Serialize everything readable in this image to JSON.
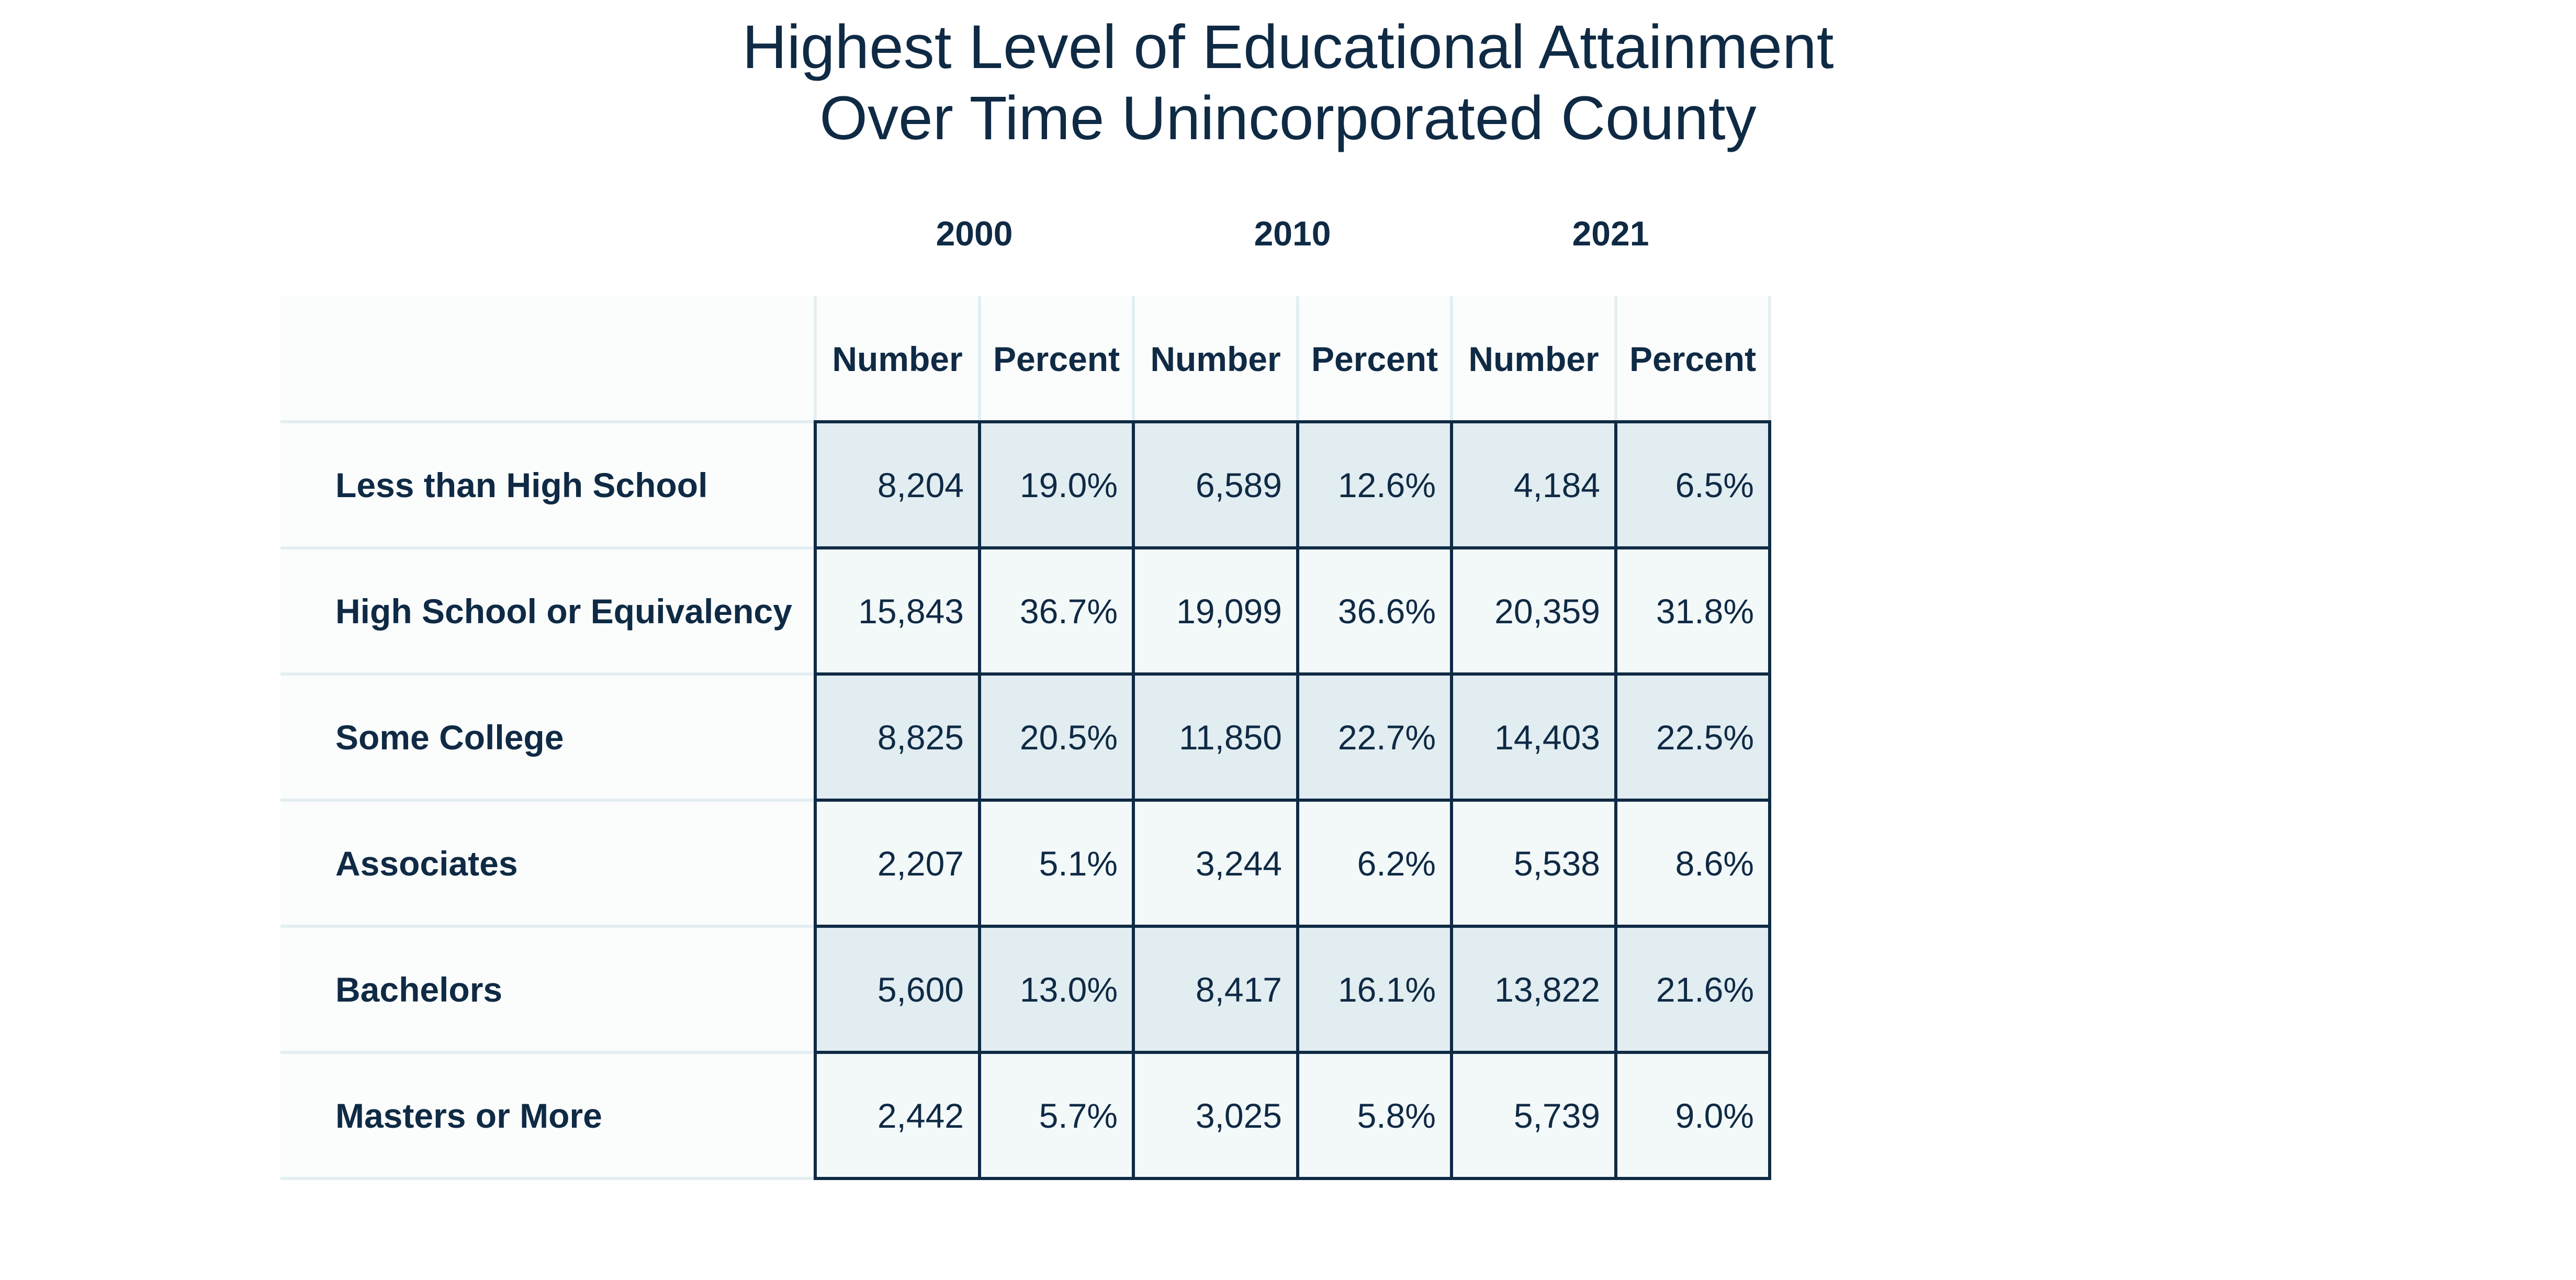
{
  "chart_data": {
    "type": "table",
    "title_lines": [
      "Highest Level of Educational Attainment",
      "Over Time Unincorporated County"
    ],
    "years": [
      "2000",
      "2010",
      "2021"
    ],
    "subheaders": [
      "Number",
      "Percent",
      "Number",
      "Percent",
      "Number",
      "Percent"
    ],
    "rows": [
      {
        "label": "Less than High School",
        "values": [
          "8,204",
          "19.0%",
          "6,589",
          "12.6%",
          "4,184",
          "6.5%"
        ]
      },
      {
        "label": "High School or Equivalency",
        "values": [
          "15,843",
          "36.7%",
          "19,099",
          "36.6%",
          "20,359",
          "31.8%"
        ]
      },
      {
        "label": "Some College",
        "values": [
          "8,825",
          "20.5%",
          "11,850",
          "22.7%",
          "14,403",
          "22.5%"
        ]
      },
      {
        "label": "Associates",
        "values": [
          "2,207",
          "5.1%",
          "3,244",
          "6.2%",
          "5,538",
          "8.6%"
        ]
      },
      {
        "label": "Bachelors",
        "values": [
          "5,600",
          "13.0%",
          "8,417",
          "16.1%",
          "13,822",
          "21.6%"
        ]
      },
      {
        "label": "Masters or More",
        "values": [
          "2,442",
          "5.7%",
          "3,025",
          "5.8%",
          "5,739",
          "9.0%"
        ]
      }
    ]
  },
  "colors": {
    "text": "#0f2a44",
    "shaded_row": "#e1edf1",
    "light_row": "#f3f8f9",
    "label_row": "#fbfdfd",
    "border": "#0f2a44",
    "faint_line": "#e3eef2"
  }
}
